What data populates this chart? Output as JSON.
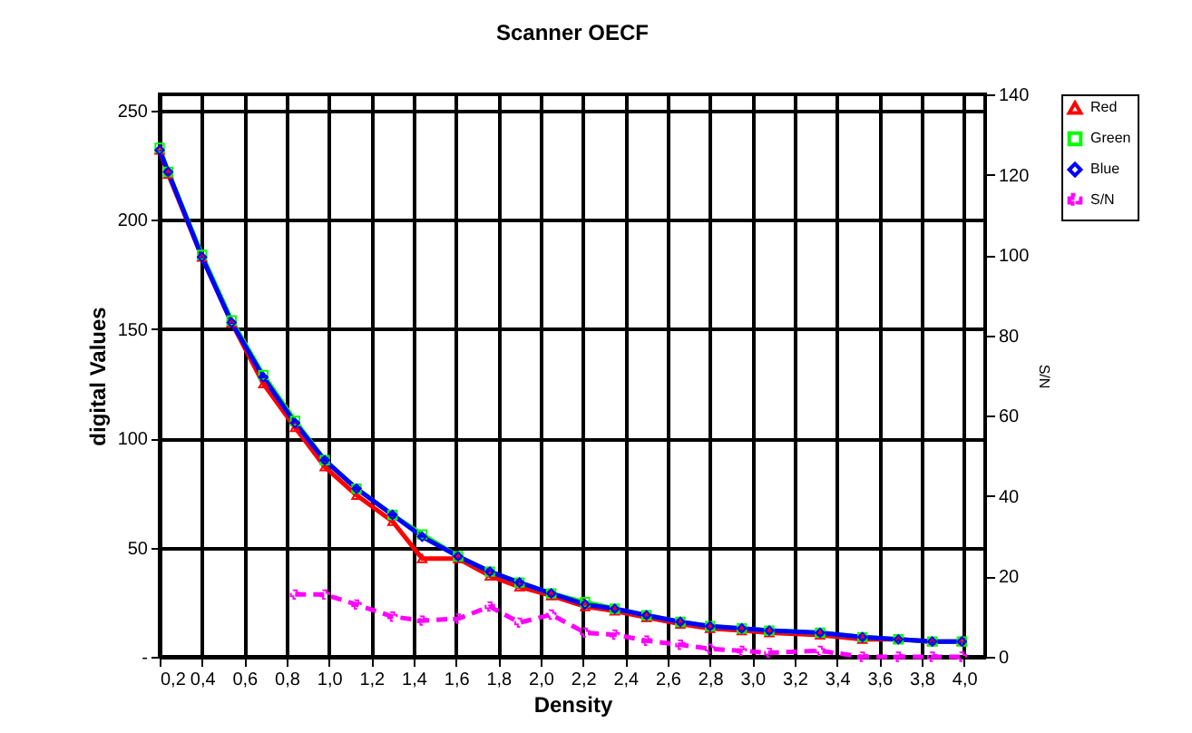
{
  "chart_data": {
    "type": "line",
    "title": "Scanner OECF",
    "xlabel": "Density",
    "ylabel": "digital Values",
    "y2label": "S/N",
    "x": [
      0.2,
      0.24,
      0.4,
      0.54,
      0.69,
      0.84,
      0.98,
      1.13,
      1.3,
      1.44,
      1.61,
      1.76,
      1.9,
      2.05,
      2.21,
      2.35,
      2.5,
      2.66,
      2.8,
      2.95,
      3.08,
      3.32,
      3.52,
      3.69,
      3.85,
      3.99
    ],
    "series": [
      {
        "name": "Red",
        "color": "#ff0000",
        "marker": "triangle",
        "values": [
          232,
          221,
          183,
          153,
          125,
          105,
          87,
          74,
          62,
          45,
          45,
          37,
          32,
          28,
          23,
          21,
          18,
          15,
          13,
          12,
          11,
          10,
          8,
          8,
          7,
          7
        ]
      },
      {
        "name": "Green",
        "color": "#00ff00",
        "marker": "square",
        "values": [
          233,
          222,
          184,
          154,
          129,
          108,
          90,
          77,
          65,
          56,
          46,
          39,
          34,
          29,
          25,
          22,
          19,
          16,
          14,
          13,
          12,
          11,
          9,
          8,
          7,
          7
        ]
      },
      {
        "name": "Blue",
        "color": "#0000ff",
        "marker": "diamond",
        "values": [
          232,
          222,
          183,
          153,
          128,
          107,
          90,
          77,
          65,
          55,
          46,
          39,
          34,
          29,
          24,
          22,
          19,
          16,
          14,
          13,
          12,
          11,
          9,
          8,
          7,
          7
        ]
      },
      {
        "name": "S/N",
        "color": "#ff00ff",
        "marker": "cross",
        "line_style": "dashed",
        "axis": "y2",
        "x": [
          0.84,
          0.98,
          1.13,
          1.3,
          1.44,
          1.61,
          1.76,
          1.9,
          2.05,
          2.21,
          2.35,
          2.5,
          2.66,
          2.8,
          2.95,
          3.08,
          3.32,
          3.52,
          3.69,
          3.85,
          3.99
        ],
        "values": [
          15.5,
          15.5,
          13,
          10,
          9,
          9.5,
          12.5,
          8.5,
          10.5,
          6,
          5.5,
          4,
          3,
          2,
          1.5,
          1,
          1.5,
          0,
          0,
          0,
          0
        ]
      }
    ],
    "xlim": [
      0.2,
      4.1
    ],
    "xticks": [
      {
        "value": 0.2,
        "label": "0,2"
      },
      {
        "value": 0.4,
        "label": "0,4"
      },
      {
        "value": 0.6,
        "label": "0,6"
      },
      {
        "value": 0.8,
        "label": "0,8"
      },
      {
        "value": 1.0,
        "label": "1,0"
      },
      {
        "value": 1.2,
        "label": "1,2"
      },
      {
        "value": 1.4,
        "label": "1,4"
      },
      {
        "value": 1.6,
        "label": "1,6"
      },
      {
        "value": 1.8,
        "label": "1,8"
      },
      {
        "value": 2.0,
        "label": "2,0"
      },
      {
        "value": 2.2,
        "label": "2,2"
      },
      {
        "value": 2.4,
        "label": "2,4"
      },
      {
        "value": 2.6,
        "label": "2,6"
      },
      {
        "value": 2.8,
        "label": "2,8"
      },
      {
        "value": 3.0,
        "label": "3,0"
      },
      {
        "value": 3.2,
        "label": "3,2"
      },
      {
        "value": 3.4,
        "label": "3,4"
      },
      {
        "value": 3.6,
        "label": "3,6"
      },
      {
        "value": 3.8,
        "label": "3,8"
      },
      {
        "value": 4.0,
        "label": "4,0"
      }
    ],
    "ylim": [
      0,
      257.5
    ],
    "yticks": [
      {
        "value": 0,
        "label": "-"
      },
      50,
      100,
      150,
      200,
      250
    ],
    "y2lim": [
      0,
      140
    ],
    "y2ticks": [
      0,
      20,
      40,
      60,
      80,
      100,
      120,
      140
    ],
    "grid": true,
    "legend": "right"
  }
}
